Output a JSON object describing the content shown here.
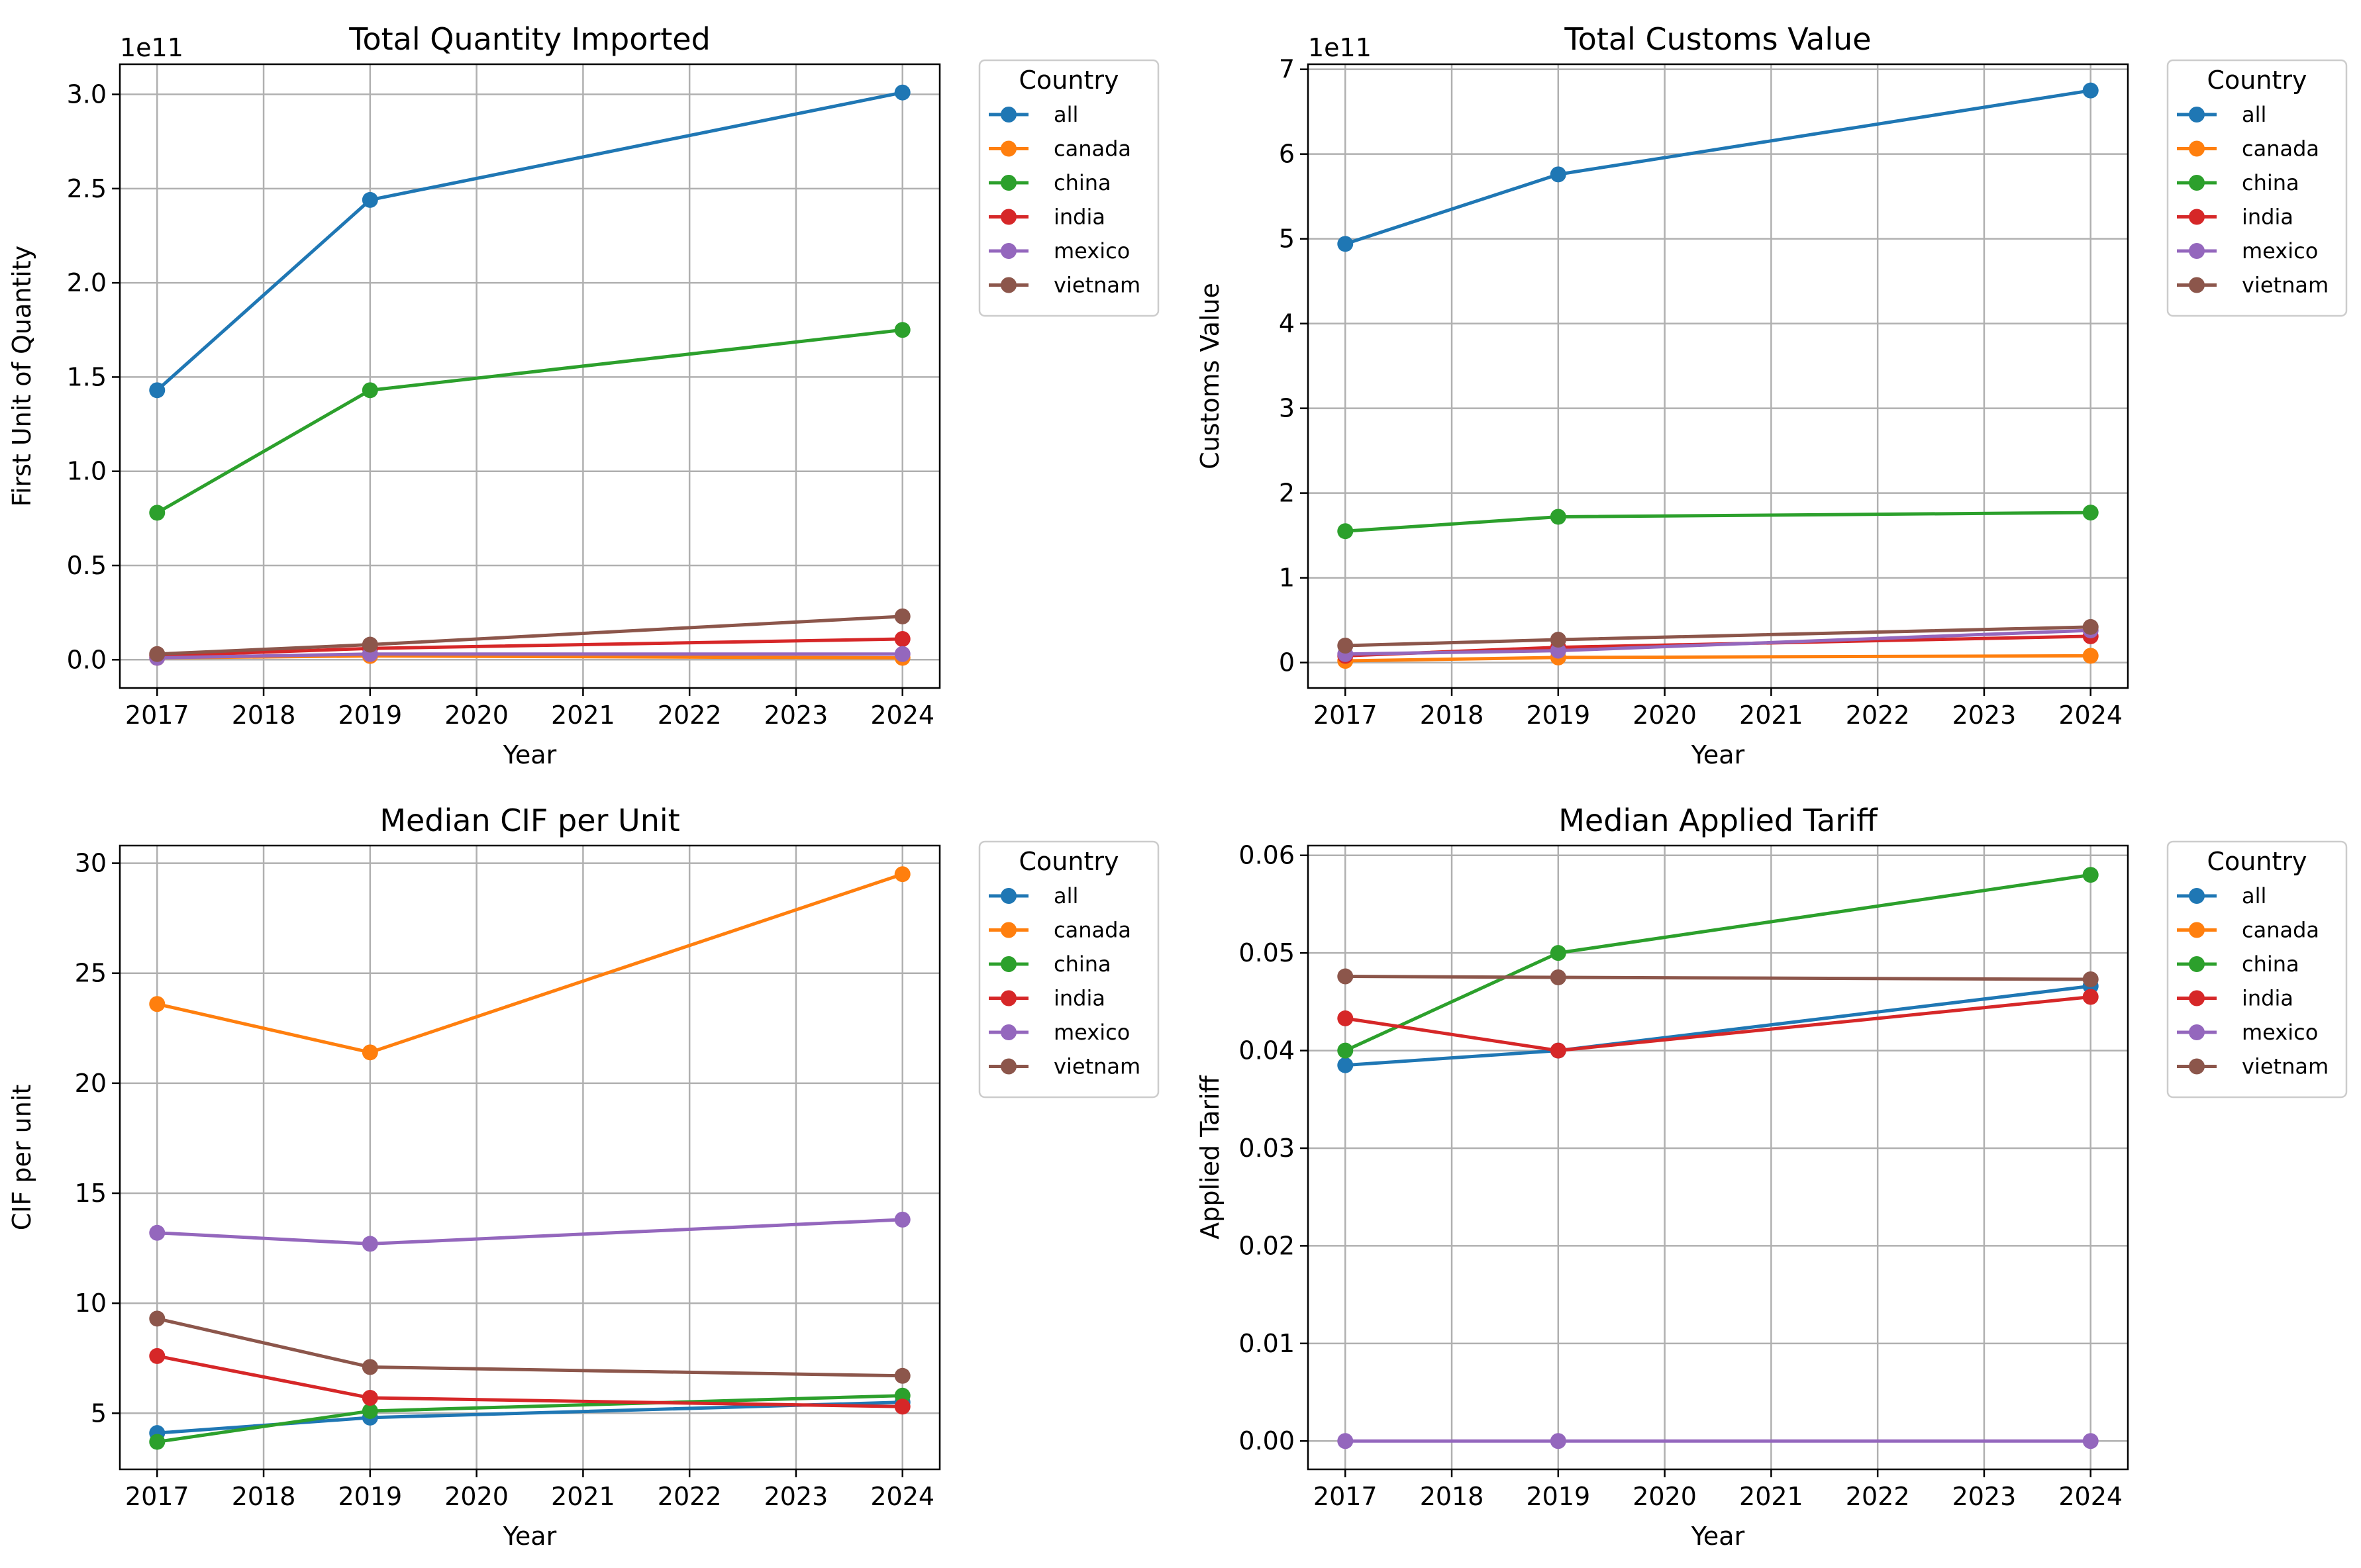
{
  "chart_data": [
    {
      "type": "line",
      "title": "Total Quantity Imported",
      "xlabel": "Year",
      "ylabel": "First Unit of Quantity",
      "y_exponent_label": "1e11",
      "y_scale_factor": 100000000000.0,
      "x_ticks": [
        2017,
        2018,
        2019,
        2020,
        2021,
        2022,
        2023,
        2024
      ],
      "y_ticks": [
        0.0,
        0.5,
        1.0,
        1.5,
        2.0,
        2.5,
        3.0
      ],
      "y_tick_labels": [
        "0.0",
        "0.5",
        "1.0",
        "1.5",
        "2.0",
        "2.5",
        "3.0"
      ],
      "xlim": [
        2016.65,
        2024.35
      ],
      "ylim": [
        -15000000000.0,
        316000000000.0
      ],
      "grid": true,
      "legend_title": "Country",
      "legend_position": "outside-right-top",
      "x": [
        2017,
        2019,
        2024
      ],
      "series": [
        {
          "name": "all",
          "color": "#1f77b4",
          "values": [
            143000000000.0,
            244000000000.0,
            301000000000.0
          ]
        },
        {
          "name": "canada",
          "color": "#ff7f0e",
          "values": [
            1000000000.0,
            2000000000.0,
            1000000000.0
          ]
        },
        {
          "name": "china",
          "color": "#2ca02c",
          "values": [
            78000000000.0,
            143000000000.0,
            175000000000.0
          ]
        },
        {
          "name": "india",
          "color": "#d62728",
          "values": [
            2000000000.0,
            6000000000.0,
            11000000000.0
          ]
        },
        {
          "name": "mexico",
          "color": "#9467bd",
          "values": [
            1000000000.0,
            3000000000.0,
            3000000000.0
          ]
        },
        {
          "name": "vietnam",
          "color": "#8c564b",
          "values": [
            3000000000.0,
            8000000000.0,
            23000000000.0
          ]
        }
      ]
    },
    {
      "type": "line",
      "title": "Total Customs Value",
      "xlabel": "Year",
      "ylabel": "Customs Value",
      "y_exponent_label": "1e11",
      "y_scale_factor": 100000000000.0,
      "x_ticks": [
        2017,
        2018,
        2019,
        2020,
        2021,
        2022,
        2023,
        2024
      ],
      "y_ticks": [
        0,
        1,
        2,
        3,
        4,
        5,
        6,
        7
      ],
      "y_tick_labels": [
        "0",
        "1",
        "2",
        "3",
        "4",
        "5",
        "6",
        "7"
      ],
      "xlim": [
        2016.65,
        2024.35
      ],
      "ylim": [
        -30000000000.0,
        706000000000.0
      ],
      "grid": true,
      "legend_title": "Country",
      "legend_position": "outside-right-top",
      "x": [
        2017,
        2019,
        2024
      ],
      "series": [
        {
          "name": "all",
          "color": "#1f77b4",
          "values": [
            494000000000.0,
            576000000000.0,
            675000000000.0
          ]
        },
        {
          "name": "canada",
          "color": "#ff7f0e",
          "values": [
            2000000000.0,
            6000000000.0,
            8000000000.0
          ]
        },
        {
          "name": "china",
          "color": "#2ca02c",
          "values": [
            155000000000.0,
            172000000000.0,
            177000000000.0
          ]
        },
        {
          "name": "india",
          "color": "#d62728",
          "values": [
            8000000000.0,
            18000000000.0,
            31000000000.0
          ]
        },
        {
          "name": "mexico",
          "color": "#9467bd",
          "values": [
            10000000000.0,
            14000000000.0,
            38000000000.0
          ]
        },
        {
          "name": "vietnam",
          "color": "#8c564b",
          "values": [
            20000000000.0,
            27000000000.0,
            42000000000.0
          ]
        }
      ]
    },
    {
      "type": "line",
      "title": "Median CIF per Unit",
      "xlabel": "Year",
      "ylabel": "CIF per unit",
      "y_exponent_label": "",
      "y_scale_factor": 1,
      "x_ticks": [
        2017,
        2018,
        2019,
        2020,
        2021,
        2022,
        2023,
        2024
      ],
      "y_ticks": [
        5,
        10,
        15,
        20,
        25,
        30
      ],
      "y_tick_labels": [
        "5",
        "10",
        "15",
        "20",
        "25",
        "30"
      ],
      "xlim": [
        2016.65,
        2024.35
      ],
      "ylim": [
        2.45,
        30.8
      ],
      "grid": true,
      "legend_title": "Country",
      "legend_position": "outside-right-top",
      "x": [
        2017,
        2019,
        2024
      ],
      "series": [
        {
          "name": "all",
          "color": "#1f77b4",
          "values": [
            4.1,
            4.8,
            5.5
          ]
        },
        {
          "name": "canada",
          "color": "#ff7f0e",
          "values": [
            23.6,
            21.4,
            29.5
          ]
        },
        {
          "name": "china",
          "color": "#2ca02c",
          "values": [
            3.7,
            5.1,
            5.8
          ]
        },
        {
          "name": "india",
          "color": "#d62728",
          "values": [
            7.6,
            5.7,
            5.3
          ]
        },
        {
          "name": "mexico",
          "color": "#9467bd",
          "values": [
            13.2,
            12.7,
            13.8
          ]
        },
        {
          "name": "vietnam",
          "color": "#8c564b",
          "values": [
            9.3,
            7.1,
            6.7
          ]
        }
      ]
    },
    {
      "type": "line",
      "title": "Median Applied Tariff",
      "xlabel": "Year",
      "ylabel": "Applied Tariff",
      "y_exponent_label": "",
      "y_scale_factor": 1,
      "x_ticks": [
        2017,
        2018,
        2019,
        2020,
        2021,
        2022,
        2023,
        2024
      ],
      "y_ticks": [
        0.0,
        0.01,
        0.02,
        0.03,
        0.04,
        0.05,
        0.06
      ],
      "y_tick_labels": [
        "0.00",
        "0.01",
        "0.02",
        "0.03",
        "0.04",
        "0.05",
        "0.06"
      ],
      "xlim": [
        2016.65,
        2024.35
      ],
      "ylim": [
        -0.0029,
        0.061
      ],
      "grid": true,
      "legend_title": "Country",
      "legend_position": "outside-right-top",
      "x": [
        2017,
        2019,
        2024
      ],
      "series": [
        {
          "name": "all",
          "color": "#1f77b4",
          "values": [
            0.0385,
            0.04,
            0.0466
          ]
        },
        {
          "name": "canada",
          "color": "#ff7f0e",
          "values": [
            null,
            null,
            null
          ]
        },
        {
          "name": "china",
          "color": "#2ca02c",
          "values": [
            0.04,
            0.05,
            0.058
          ]
        },
        {
          "name": "india",
          "color": "#d62728",
          "values": [
            0.0433,
            0.04,
            0.0455
          ]
        },
        {
          "name": "mexico",
          "color": "#9467bd",
          "values": [
            0.0,
            0.0,
            0.0
          ]
        },
        {
          "name": "vietnam",
          "color": "#8c564b",
          "values": [
            0.0476,
            0.0475,
            0.0473
          ]
        }
      ]
    }
  ]
}
